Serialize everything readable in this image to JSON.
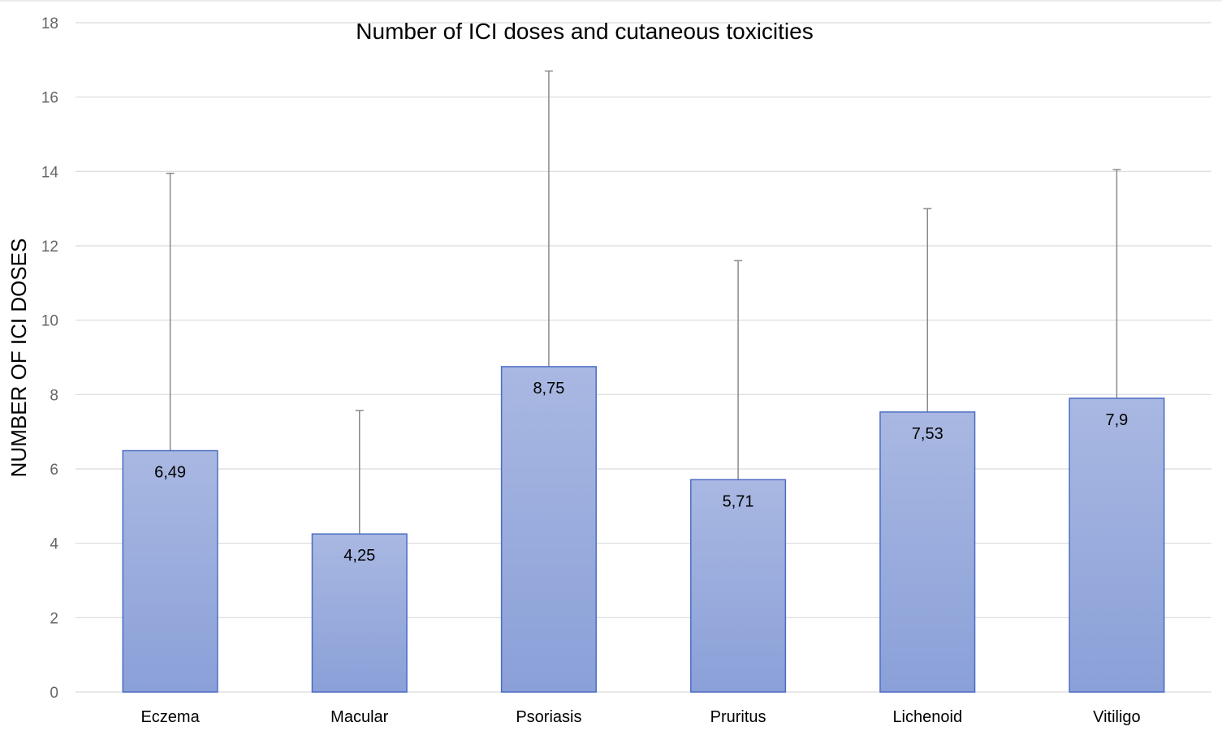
{
  "chart_data": {
    "type": "bar",
    "title": "Number of ICI doses and cutaneous toxicities",
    "xlabel": "",
    "ylabel": "NUMBER OF ICI DOSES",
    "categories": [
      "Eczema",
      "Macular",
      "Psoriasis",
      "Pruritus",
      "Lichenoid",
      "Vitiligo"
    ],
    "values": [
      6.49,
      4.25,
      8.75,
      5.71,
      7.53,
      7.9
    ],
    "value_labels": [
      "6,49",
      "4,25",
      "8,75",
      "5,71",
      "7,53",
      "7,9"
    ],
    "error_upper": [
      13.95,
      7.57,
      16.7,
      11.6,
      13.0,
      14.05
    ],
    "ylim": [
      0,
      18
    ],
    "yticks": [
      0,
      2,
      4,
      6,
      8,
      10,
      12,
      14,
      16,
      18
    ],
    "grid": true,
    "legend": "none",
    "colors": {
      "bar_top": "#a9b8e2",
      "bar_bottom": "#8aa0d8",
      "bar_border": "#4a6cc4",
      "error_bar": "#8a8a8a",
      "grid": "#d9d9d9"
    }
  }
}
